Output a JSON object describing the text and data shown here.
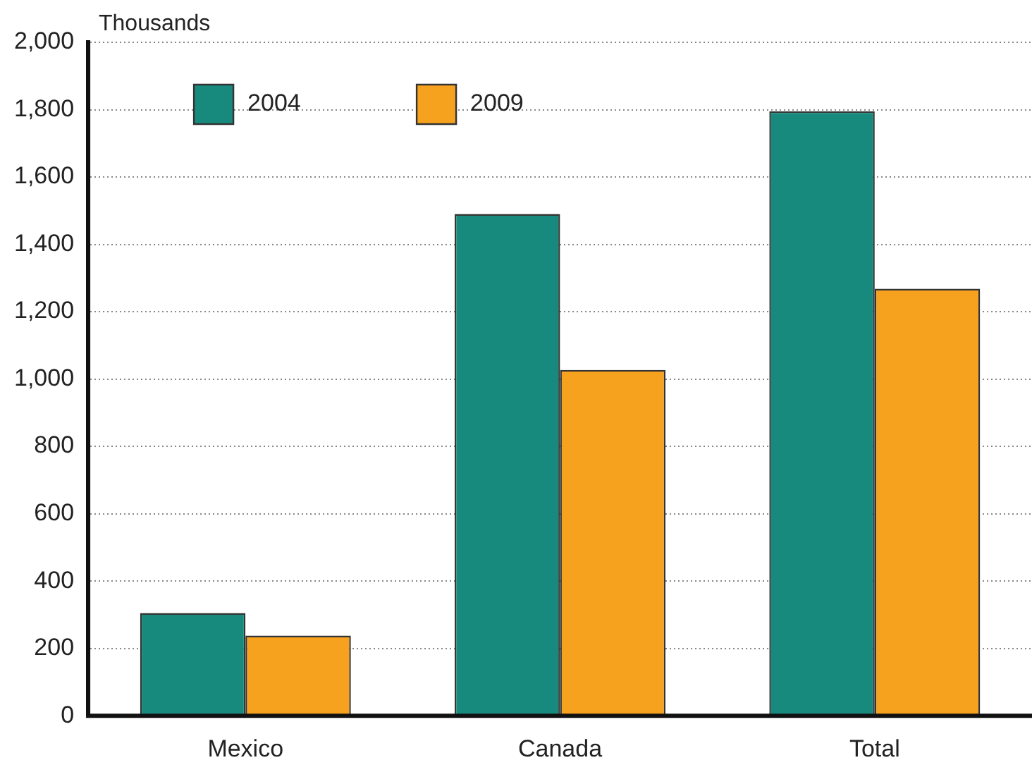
{
  "chart_data": {
    "type": "bar",
    "ylabel": "Thousands",
    "categories": [
      "Mexico",
      "Canada",
      "Total"
    ],
    "series": [
      {
        "name": "2004",
        "color": "#178a7d",
        "values": [
          305,
          1490,
          1795
        ]
      },
      {
        "name": "2009",
        "color": "#f7a21e",
        "values": [
          238,
          1027,
          1268
        ]
      }
    ],
    "ylim": [
      0,
      2000
    ],
    "yticks": [
      {
        "value": 0,
        "label": "0"
      },
      {
        "value": 200,
        "label": "200"
      },
      {
        "value": 400,
        "label": "400"
      },
      {
        "value": 600,
        "label": "600"
      },
      {
        "value": 800,
        "label": "800"
      },
      {
        "value": 1000,
        "label": "1,000"
      },
      {
        "value": 1200,
        "label": "1,200"
      },
      {
        "value": 1400,
        "label": "1,400"
      },
      {
        "value": 1600,
        "label": "1,600"
      },
      {
        "value": 1800,
        "label": "1,800"
      },
      {
        "value": 2000,
        "label": "2,000"
      }
    ],
    "grid": "y",
    "legend": "top left"
  }
}
